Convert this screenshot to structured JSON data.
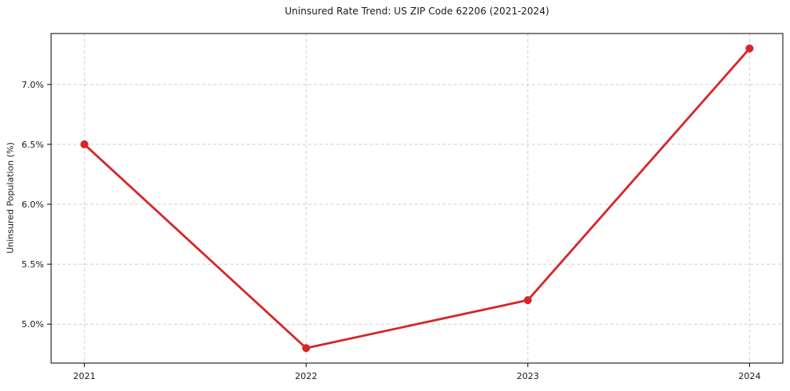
{
  "chart_data": {
    "type": "line",
    "title": "Uninsured Rate Trend: US ZIP Code 62206 (2021-2024)",
    "ylabel": "Uninsured Population (%)",
    "xlabel": "",
    "x": [
      2021,
      2022,
      2023,
      2024
    ],
    "values": [
      6.5,
      4.8,
      5.2,
      7.3
    ],
    "xticks": [
      2021,
      2022,
      2023,
      2024
    ],
    "xtick_labels": [
      "2021",
      "2022",
      "2023",
      "2024"
    ],
    "yticks": [
      5.0,
      5.5,
      6.0,
      6.5,
      7.0
    ],
    "ytick_labels": [
      "5.0%",
      "5.5%",
      "6.0%",
      "6.5%",
      "7.0%"
    ],
    "xlim": [
      2020.85,
      2024.15
    ],
    "ylim": [
      4.675,
      7.425
    ],
    "grid": true,
    "legend": false,
    "line_color": "#d62728",
    "grid_color": "#cfcfcf",
    "marker": "circle",
    "marker_radius": 5
  }
}
